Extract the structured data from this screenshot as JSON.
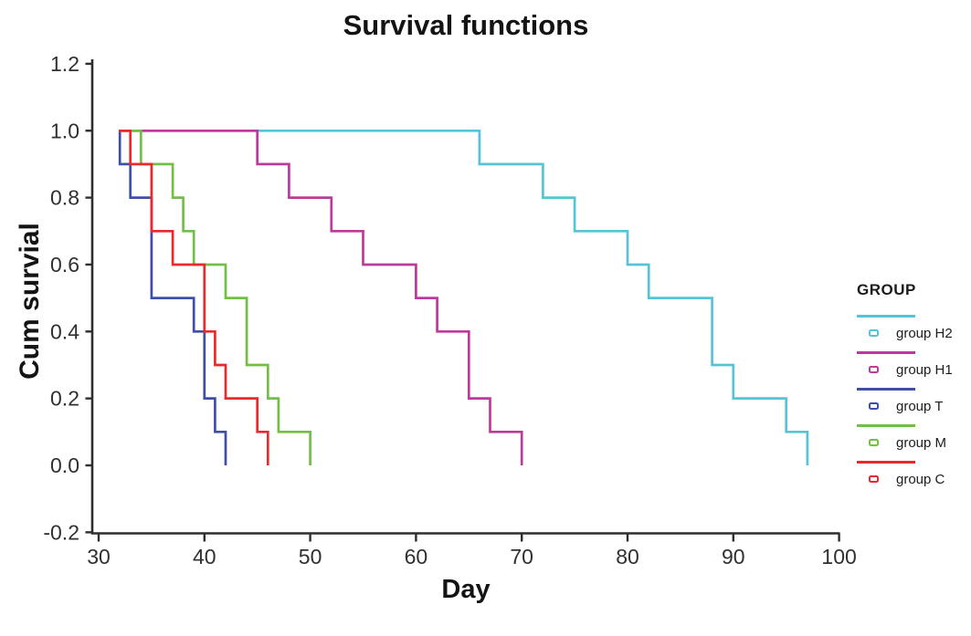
{
  "title": "Survival functions",
  "axes": {
    "x": {
      "label": "Day"
    },
    "y": {
      "label": "Cum survial"
    }
  },
  "legend": {
    "title": "GROUP",
    "entries": [
      {
        "label": "group H2",
        "color": "#54c4d6"
      },
      {
        "label": "group H1",
        "color": "#bb3a9c"
      },
      {
        "label": "group T",
        "color": "#3f4fa8"
      },
      {
        "label": "group M",
        "color": "#71c044"
      },
      {
        "label": "group C",
        "color": "#e92a2d"
      }
    ]
  },
  "colors": {
    "axis": "#2e2e2e",
    "tick_text": "#303030"
  },
  "chart_data": {
    "type": "line",
    "variant": "kaplan_meier_step",
    "title": "Survival functions",
    "xlabel": "Day",
    "ylabel": "Cum survial",
    "xlim": [
      30,
      100
    ],
    "ylim": [
      -0.2,
      1.2
    ],
    "x_ticks": [
      30,
      40,
      50,
      60,
      70,
      80,
      90,
      100
    ],
    "x_tick_labels": [
      "30",
      "40",
      "50",
      "60",
      "70",
      "80",
      "90",
      "100"
    ],
    "y_ticks": [
      1.2,
      1.0,
      0.8,
      0.6,
      0.4,
      0.2,
      0.0,
      -0.2
    ],
    "y_tick_labels": [
      "1.2",
      "1.0",
      "0.8",
      "0.6",
      "0.4",
      "0.2",
      "0.0",
      "-0.2"
    ],
    "grid": false,
    "legend_title": "GROUP",
    "legend_position": "right",
    "curve_start_day": 31.9,
    "start_survival": 1.0,
    "series": [
      {
        "name": "group H2",
        "color": "#54c4d6",
        "events": [
          [
            66,
            0.9
          ],
          [
            72,
            0.8
          ],
          [
            75,
            0.7
          ],
          [
            80,
            0.6
          ],
          [
            82,
            0.5
          ],
          [
            88,
            0.3
          ],
          [
            90,
            0.2
          ],
          [
            95,
            0.1
          ],
          [
            97,
            0.0
          ]
        ]
      },
      {
        "name": "group H1",
        "color": "#bb3a9c",
        "events": [
          [
            45,
            0.9
          ],
          [
            48,
            0.8
          ],
          [
            52,
            0.7
          ],
          [
            55,
            0.6
          ],
          [
            60,
            0.5
          ],
          [
            62,
            0.4
          ],
          [
            65,
            0.2
          ],
          [
            67,
            0.1
          ],
          [
            70,
            0.0
          ]
        ]
      },
      {
        "name": "group T",
        "color": "#3f4fa8",
        "events": [
          [
            32,
            0.9
          ],
          [
            33,
            0.8
          ],
          [
            35,
            0.5
          ],
          [
            39,
            0.4
          ],
          [
            40,
            0.2
          ],
          [
            41,
            0.1
          ],
          [
            42,
            0.0
          ]
        ]
      },
      {
        "name": "group M",
        "color": "#71c044",
        "events": [
          [
            34,
            0.9
          ],
          [
            37,
            0.8
          ],
          [
            38,
            0.7
          ],
          [
            39,
            0.6
          ],
          [
            42,
            0.5
          ],
          [
            44,
            0.3
          ],
          [
            46,
            0.2
          ],
          [
            47,
            0.1
          ],
          [
            50,
            0.0
          ]
        ]
      },
      {
        "name": "group C",
        "color": "#e92a2d",
        "events": [
          [
            33,
            0.9
          ],
          [
            35,
            0.7
          ],
          [
            37,
            0.6
          ],
          [
            40,
            0.4
          ],
          [
            41,
            0.3
          ],
          [
            42,
            0.2
          ],
          [
            45,
            0.1
          ],
          [
            46,
            0.0
          ]
        ]
      }
    ]
  }
}
